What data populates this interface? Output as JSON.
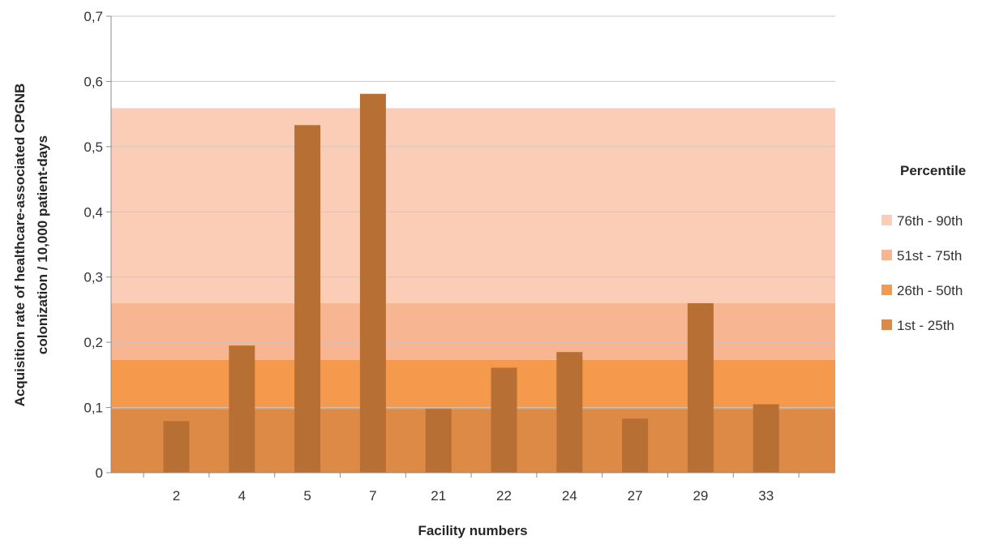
{
  "chart_data": {
    "type": "bar",
    "title": "",
    "xlabel": "Facility numbers",
    "ylabel_lines": [
      "Acquisition rate of healthcare-associated CPGNB",
      "colonization / 10,000 patient-days"
    ],
    "ylim": [
      0,
      0.7
    ],
    "yticks": [
      0,
      0.1,
      0.2,
      0.3,
      0.4,
      0.5,
      0.6,
      0.7
    ],
    "ytick_labels": [
      "0",
      "0,1",
      "0,2",
      "0,3",
      "0,4",
      "0,5",
      "0,6",
      "0,7"
    ],
    "categories": [
      "2",
      "4",
      "5",
      "7",
      "21",
      "22",
      "24",
      "27",
      "29",
      "33"
    ],
    "values": [
      0.079,
      0.195,
      0.533,
      0.581,
      0.098,
      0.161,
      0.185,
      0.083,
      0.26,
      0.105
    ],
    "bar_color": "#b86f33",
    "grid": true,
    "legend": {
      "title": "Percentile",
      "placement": "right",
      "items": [
        {
          "label": "76th - 90th",
          "color": "#fbcdb7"
        },
        {
          "label": "51st - 75th",
          "color": "#f7b592"
        },
        {
          "label": "26th - 50th",
          "color": "#f59a4c"
        },
        {
          "label": "1st - 25th",
          "color": "#dc8a46"
        }
      ]
    },
    "percentile_bands": [
      {
        "label": "1st - 25th",
        "from": 0,
        "to": 0.098,
        "color": "#dc8a46"
      },
      {
        "label": "26th - 50th",
        "from": 0.098,
        "to": 0.173,
        "color": "#f59a4c"
      },
      {
        "label": "51st - 75th",
        "from": 0.173,
        "to": 0.26,
        "color": "#f7b592"
      },
      {
        "label": "76th - 90th",
        "from": 0.26,
        "to": 0.559,
        "color": "#fbcdb7"
      }
    ]
  }
}
